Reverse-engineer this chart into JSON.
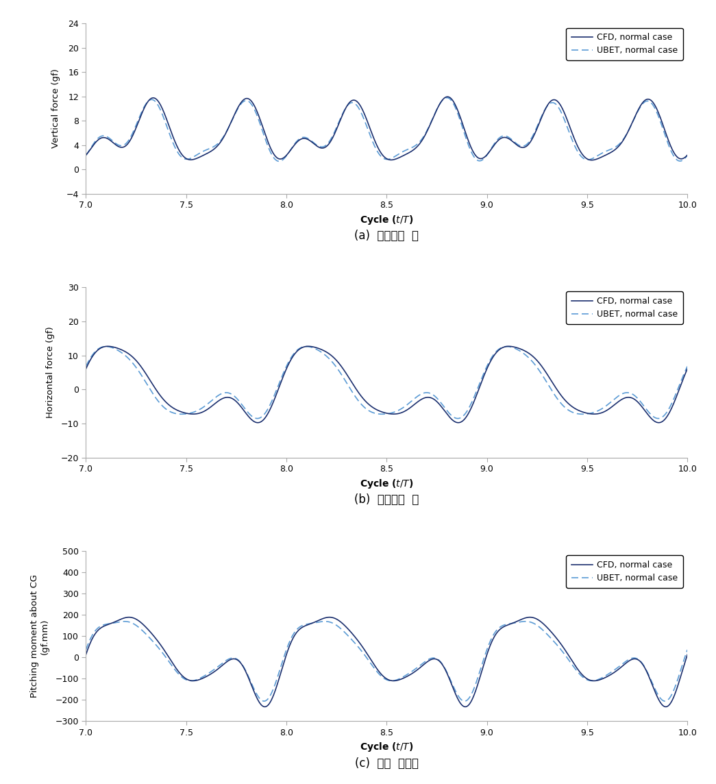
{
  "xlim": [
    7.0,
    10.0
  ],
  "xticks": [
    7.0,
    7.5,
    8.0,
    8.5,
    9.0,
    9.5,
    10.0
  ],
  "plot1_ylabel": "Vertical force (gf)",
  "plot1_ylim": [
    -4,
    24
  ],
  "plot1_yticks": [
    -4,
    0,
    4,
    8,
    12,
    16,
    20,
    24
  ],
  "plot1_caption": "(a)  수직성분  힘",
  "plot2_ylabel": "Horizontal force (gf)",
  "plot2_ylim": [
    -20,
    30
  ],
  "plot2_yticks": [
    -20,
    -10,
    0,
    10,
    20,
    30
  ],
  "plot2_caption": "(b)  수평성분  힘",
  "plot3_ylabel_line1": "Pitching moment about CG",
  "plot3_ylabel_line2": "(gf.mm)",
  "plot3_ylim": [
    -300,
    500
  ],
  "plot3_yticks": [
    -300,
    -200,
    -100,
    0,
    100,
    200,
    300,
    400,
    500
  ],
  "plot3_caption": "(c)  피칭  모멘트",
  "cfd_color": "#1b2f6e",
  "ubet_color": "#5b9bd5",
  "cfd_linewidth": 1.2,
  "ubet_linewidth": 1.2,
  "legend_cfd": "CFD, normal case",
  "legend_ubet": "UBET, normal case",
  "fig_width": 10.45,
  "fig_height": 11.44,
  "dpi": 100
}
